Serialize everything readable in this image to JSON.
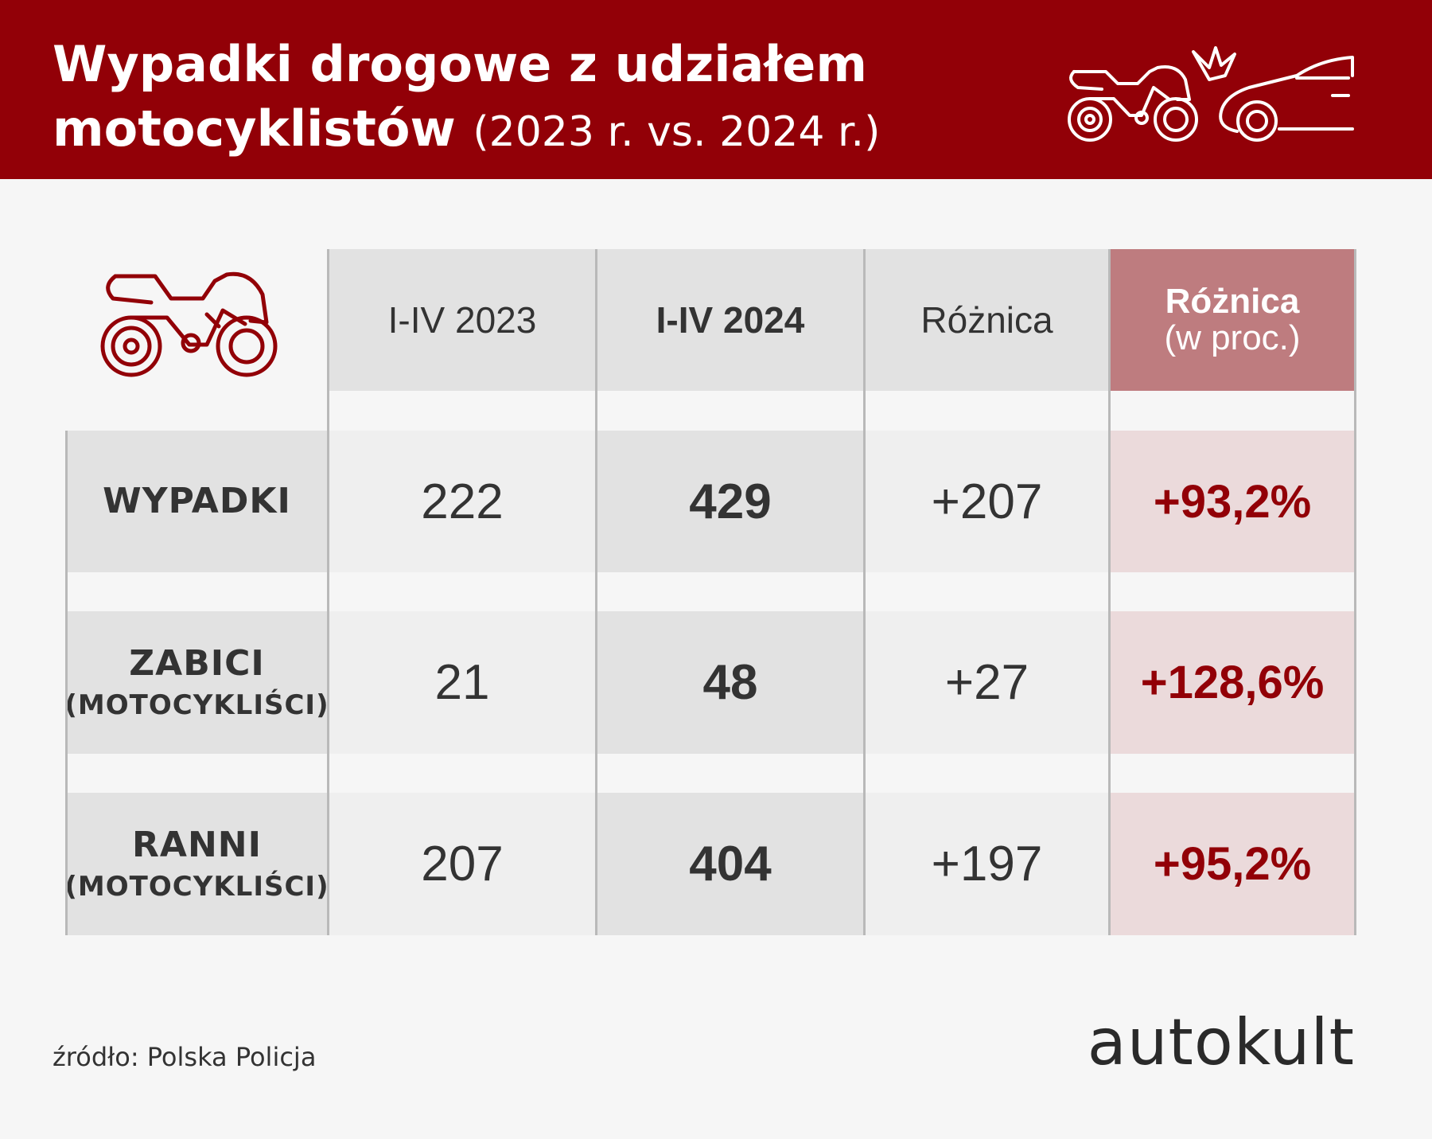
{
  "header": {
    "title_line1": "Wypadki drogowe z udziałem",
    "title_line2_main": "motocyklistów",
    "title_line2_sub": "(2023 r. vs. 2024 r.)",
    "icon": "motorcycle-car-crash-icon"
  },
  "table_icon": "motorcycle-icon",
  "colors": {
    "brand_red": "#920007",
    "pct_header_bg": "#be7c7f",
    "pct_cell_bg": "#ebdadb"
  },
  "chart_data": {
    "type": "table",
    "columns": [
      "I-IV 2023",
      "I-IV 2024",
      "Różnica",
      "Różnica (w proc.)"
    ],
    "rows": [
      {
        "label": "WYPADKI",
        "sublabel": "",
        "values": [
          "222",
          "429",
          "+207",
          "+93,2%"
        ]
      },
      {
        "label": "ZABICI",
        "sublabel": "(MOTOCYKLIŚCI)",
        "values": [
          "21",
          "48",
          "+27",
          "+128,6%"
        ]
      },
      {
        "label": "RANNI",
        "sublabel": "(MOTOCYKLIŚCI)",
        "values": [
          "207",
          "404",
          "+197",
          "+95,2%"
        ]
      }
    ]
  },
  "table": {
    "col_2023": "I-IV 2023",
    "col_2024": "I-IV 2024",
    "col_diff": "Różnica",
    "col_pct_line1": "Różnica",
    "col_pct_line2": "(w proc.)",
    "rows": [
      {
        "label": "WYPADKI",
        "sublabel": "",
        "v2023": "222",
        "v2024": "429",
        "diff": "+207",
        "pct": "+93,2%"
      },
      {
        "label": "ZABICI",
        "sublabel": "(MOTOCYKLIŚCI)",
        "v2023": "21",
        "v2024": "48",
        "diff": "+27",
        "pct": "+128,6%"
      },
      {
        "label": "RANNI",
        "sublabel": "(MOTOCYKLIŚCI)",
        "v2023": "207",
        "v2024": "404",
        "diff": "+197",
        "pct": "+95,2%"
      }
    ]
  },
  "footer": {
    "source": "źródło: Polska Policja",
    "logo": "autokult"
  }
}
